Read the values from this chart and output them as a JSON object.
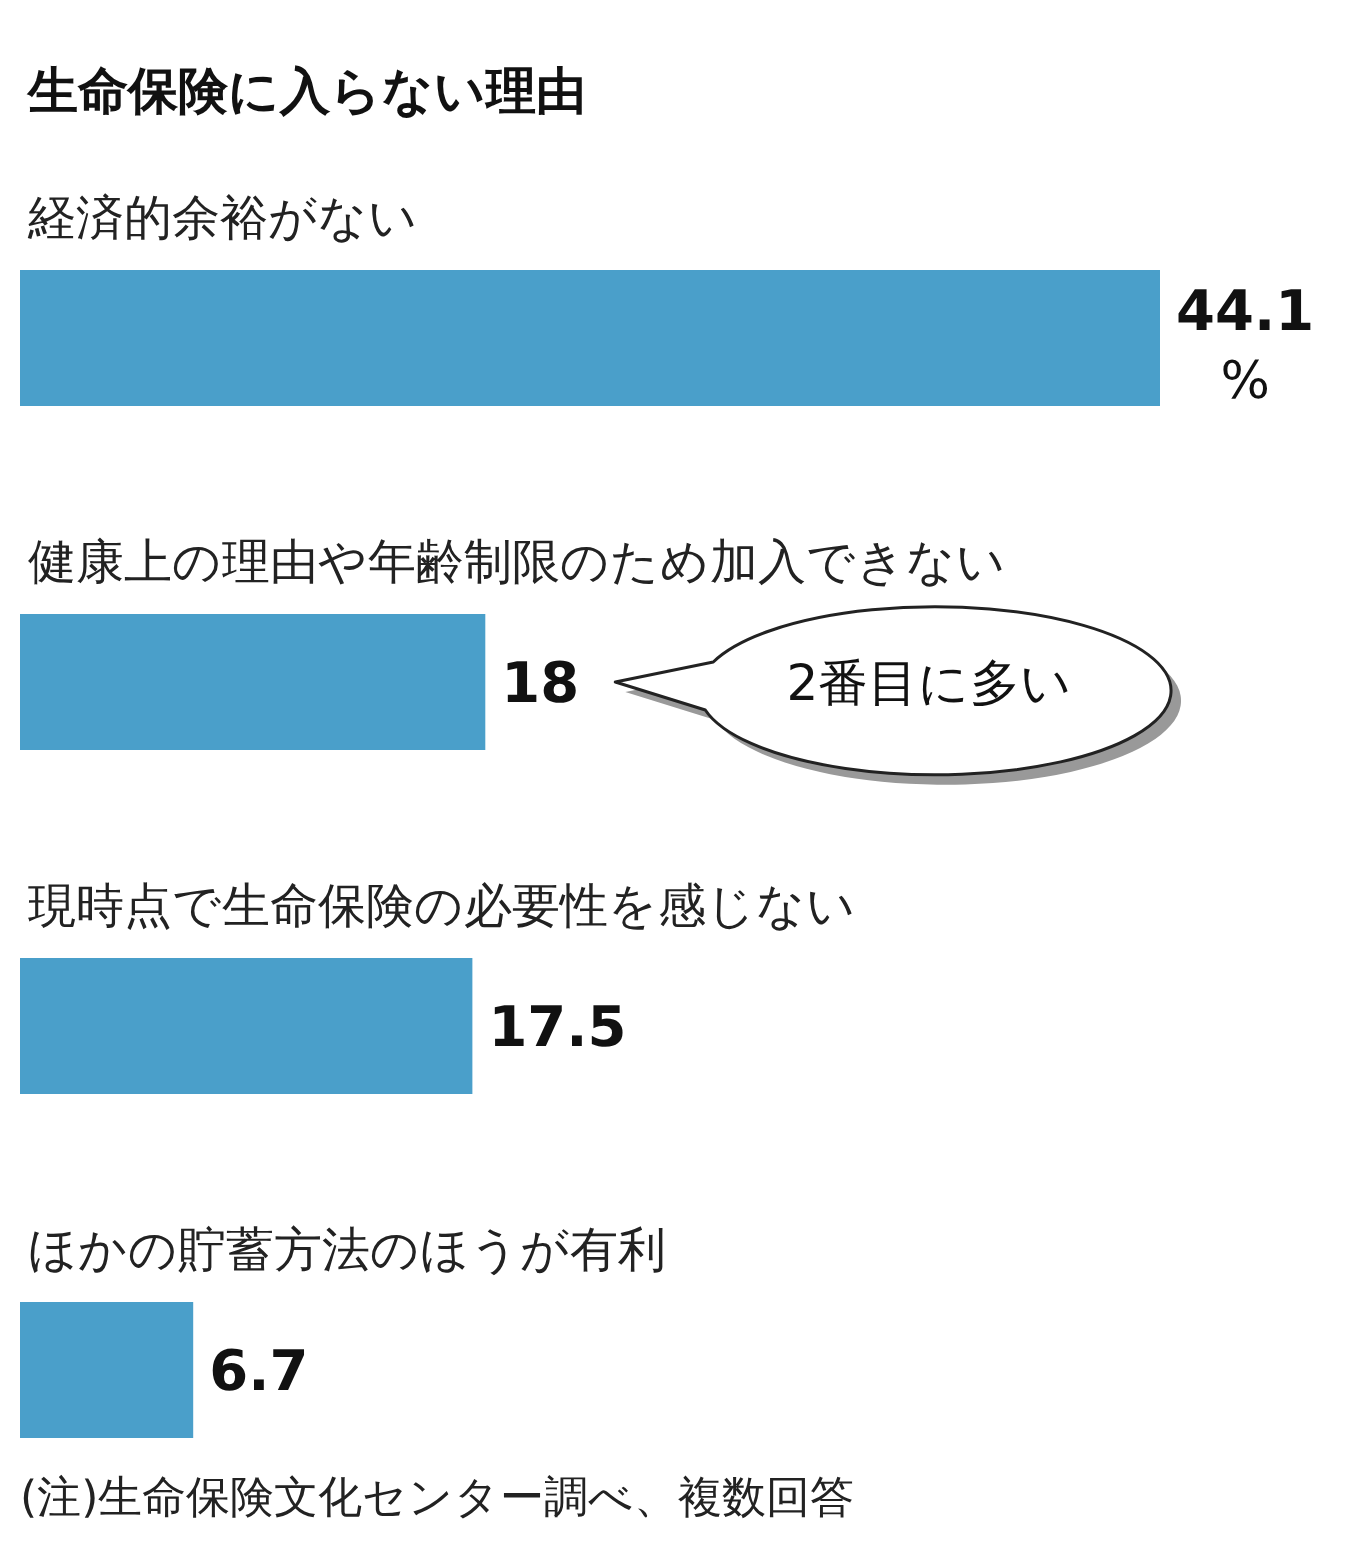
{
  "chart_data": {
    "type": "bar",
    "orientation": "horizontal",
    "title": "生命保険に入らない理由",
    "categories": [
      "経済的余裕がない",
      "健康上の理由や年齢制限のため加入できない",
      "現時点で生命保険の必要性を感じない",
      "ほかの貯蓄方法のほうが有利"
    ],
    "values": [
      44.1,
      18,
      17.5,
      6.7
    ],
    "color": "#4a9fca",
    "value_labels": [
      "44.1 %",
      "18",
      "17.5",
      "6.7"
    ],
    "annotations": [
      "2番目に多い",
      "(注)生命保険文化センター調べ、複数回答"
    ]
  }
}
